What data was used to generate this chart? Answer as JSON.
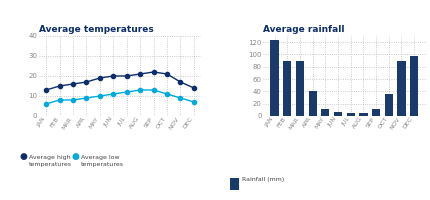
{
  "months": [
    "JAN",
    "FEB",
    "MAR",
    "APR",
    "MAY",
    "JUN",
    "JUL",
    "AUG",
    "SEP",
    "OCT",
    "NOV",
    "DEC"
  ],
  "avg_high": [
    13,
    15,
    16,
    17,
    19,
    20,
    20,
    21,
    22,
    21,
    17,
    14
  ],
  "avg_low": [
    6,
    8,
    8,
    9,
    10,
    11,
    12,
    13,
    13,
    11,
    9,
    7
  ],
  "rainfall": [
    124,
    90,
    89,
    41,
    11,
    7,
    5,
    5,
    11,
    35,
    90,
    97
  ],
  "color_high": "#0d2d6b",
  "color_low": "#00aadd",
  "color_rain": "#1a3a6b",
  "title_temp": "Average temperatures",
  "title_rain": "Average rainfall",
  "legend_high": "Average high\ntemperatures",
  "legend_low": "Average low\ntemperatures",
  "legend_rain": "Rainfall (mm)",
  "temp_ylim": [
    0,
    40
  ],
  "rain_ylim": [
    0,
    130
  ],
  "temp_yticks": [
    0,
    10,
    20,
    30,
    40
  ],
  "rain_yticks": [
    0,
    20,
    40,
    60,
    80,
    100,
    120
  ]
}
